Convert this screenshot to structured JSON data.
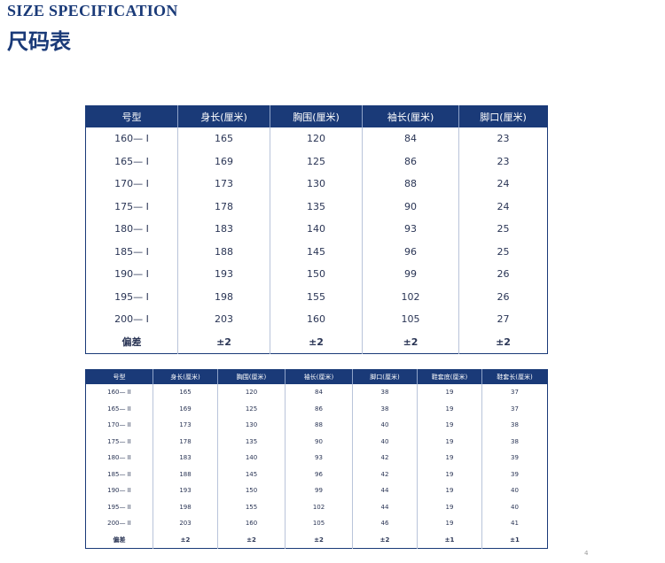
{
  "header": {
    "title_en": "SIZE SPECIFICATION",
    "title_cn": "尺码表"
  },
  "table1": {
    "columns": [
      "号型",
      "身长(厘米)",
      "胸围(厘米)",
      "袖长(厘米)",
      "脚口(厘米)"
    ],
    "rows": [
      [
        "160— I",
        "165",
        "120",
        "84",
        "23"
      ],
      [
        "165— I",
        "169",
        "125",
        "86",
        "23"
      ],
      [
        "170— I",
        "173",
        "130",
        "88",
        "24"
      ],
      [
        "175— I",
        "178",
        "135",
        "90",
        "24"
      ],
      [
        "180— I",
        "183",
        "140",
        "93",
        "25"
      ],
      [
        "185— I",
        "188",
        "145",
        "96",
        "25"
      ],
      [
        "190— I",
        "193",
        "150",
        "99",
        "26"
      ],
      [
        "195— I",
        "198",
        "155",
        "102",
        "26"
      ],
      [
        "200— I",
        "203",
        "160",
        "105",
        "27"
      ],
      [
        "偏差",
        "±2",
        "±2",
        "±2",
        "±2"
      ]
    ]
  },
  "table2": {
    "columns": [
      "号型",
      "身长(厘米)",
      "胸围(厘米)",
      "袖长(厘米)",
      "脚口(厘米)",
      "鞋套底(厘米)",
      "鞋套长(厘米)"
    ],
    "rows": [
      [
        "160— II",
        "165",
        "120",
        "84",
        "38",
        "19",
        "37"
      ],
      [
        "165— II",
        "169",
        "125",
        "86",
        "38",
        "19",
        "37"
      ],
      [
        "170— II",
        "173",
        "130",
        "88",
        "40",
        "19",
        "38"
      ],
      [
        "175— II",
        "178",
        "135",
        "90",
        "40",
        "19",
        "38"
      ],
      [
        "180— II",
        "183",
        "140",
        "93",
        "42",
        "19",
        "39"
      ],
      [
        "185— II",
        "188",
        "145",
        "96",
        "42",
        "19",
        "39"
      ],
      [
        "190— II",
        "193",
        "150",
        "99",
        "44",
        "19",
        "40"
      ],
      [
        "195— II",
        "198",
        "155",
        "102",
        "44",
        "19",
        "40"
      ],
      [
        "200— II",
        "203",
        "160",
        "105",
        "46",
        "19",
        "41"
      ],
      [
        "偏差",
        "±2",
        "±2",
        "±2",
        "±2",
        "±1",
        "±1"
      ]
    ]
  },
  "footer": {
    "mark": "4"
  }
}
